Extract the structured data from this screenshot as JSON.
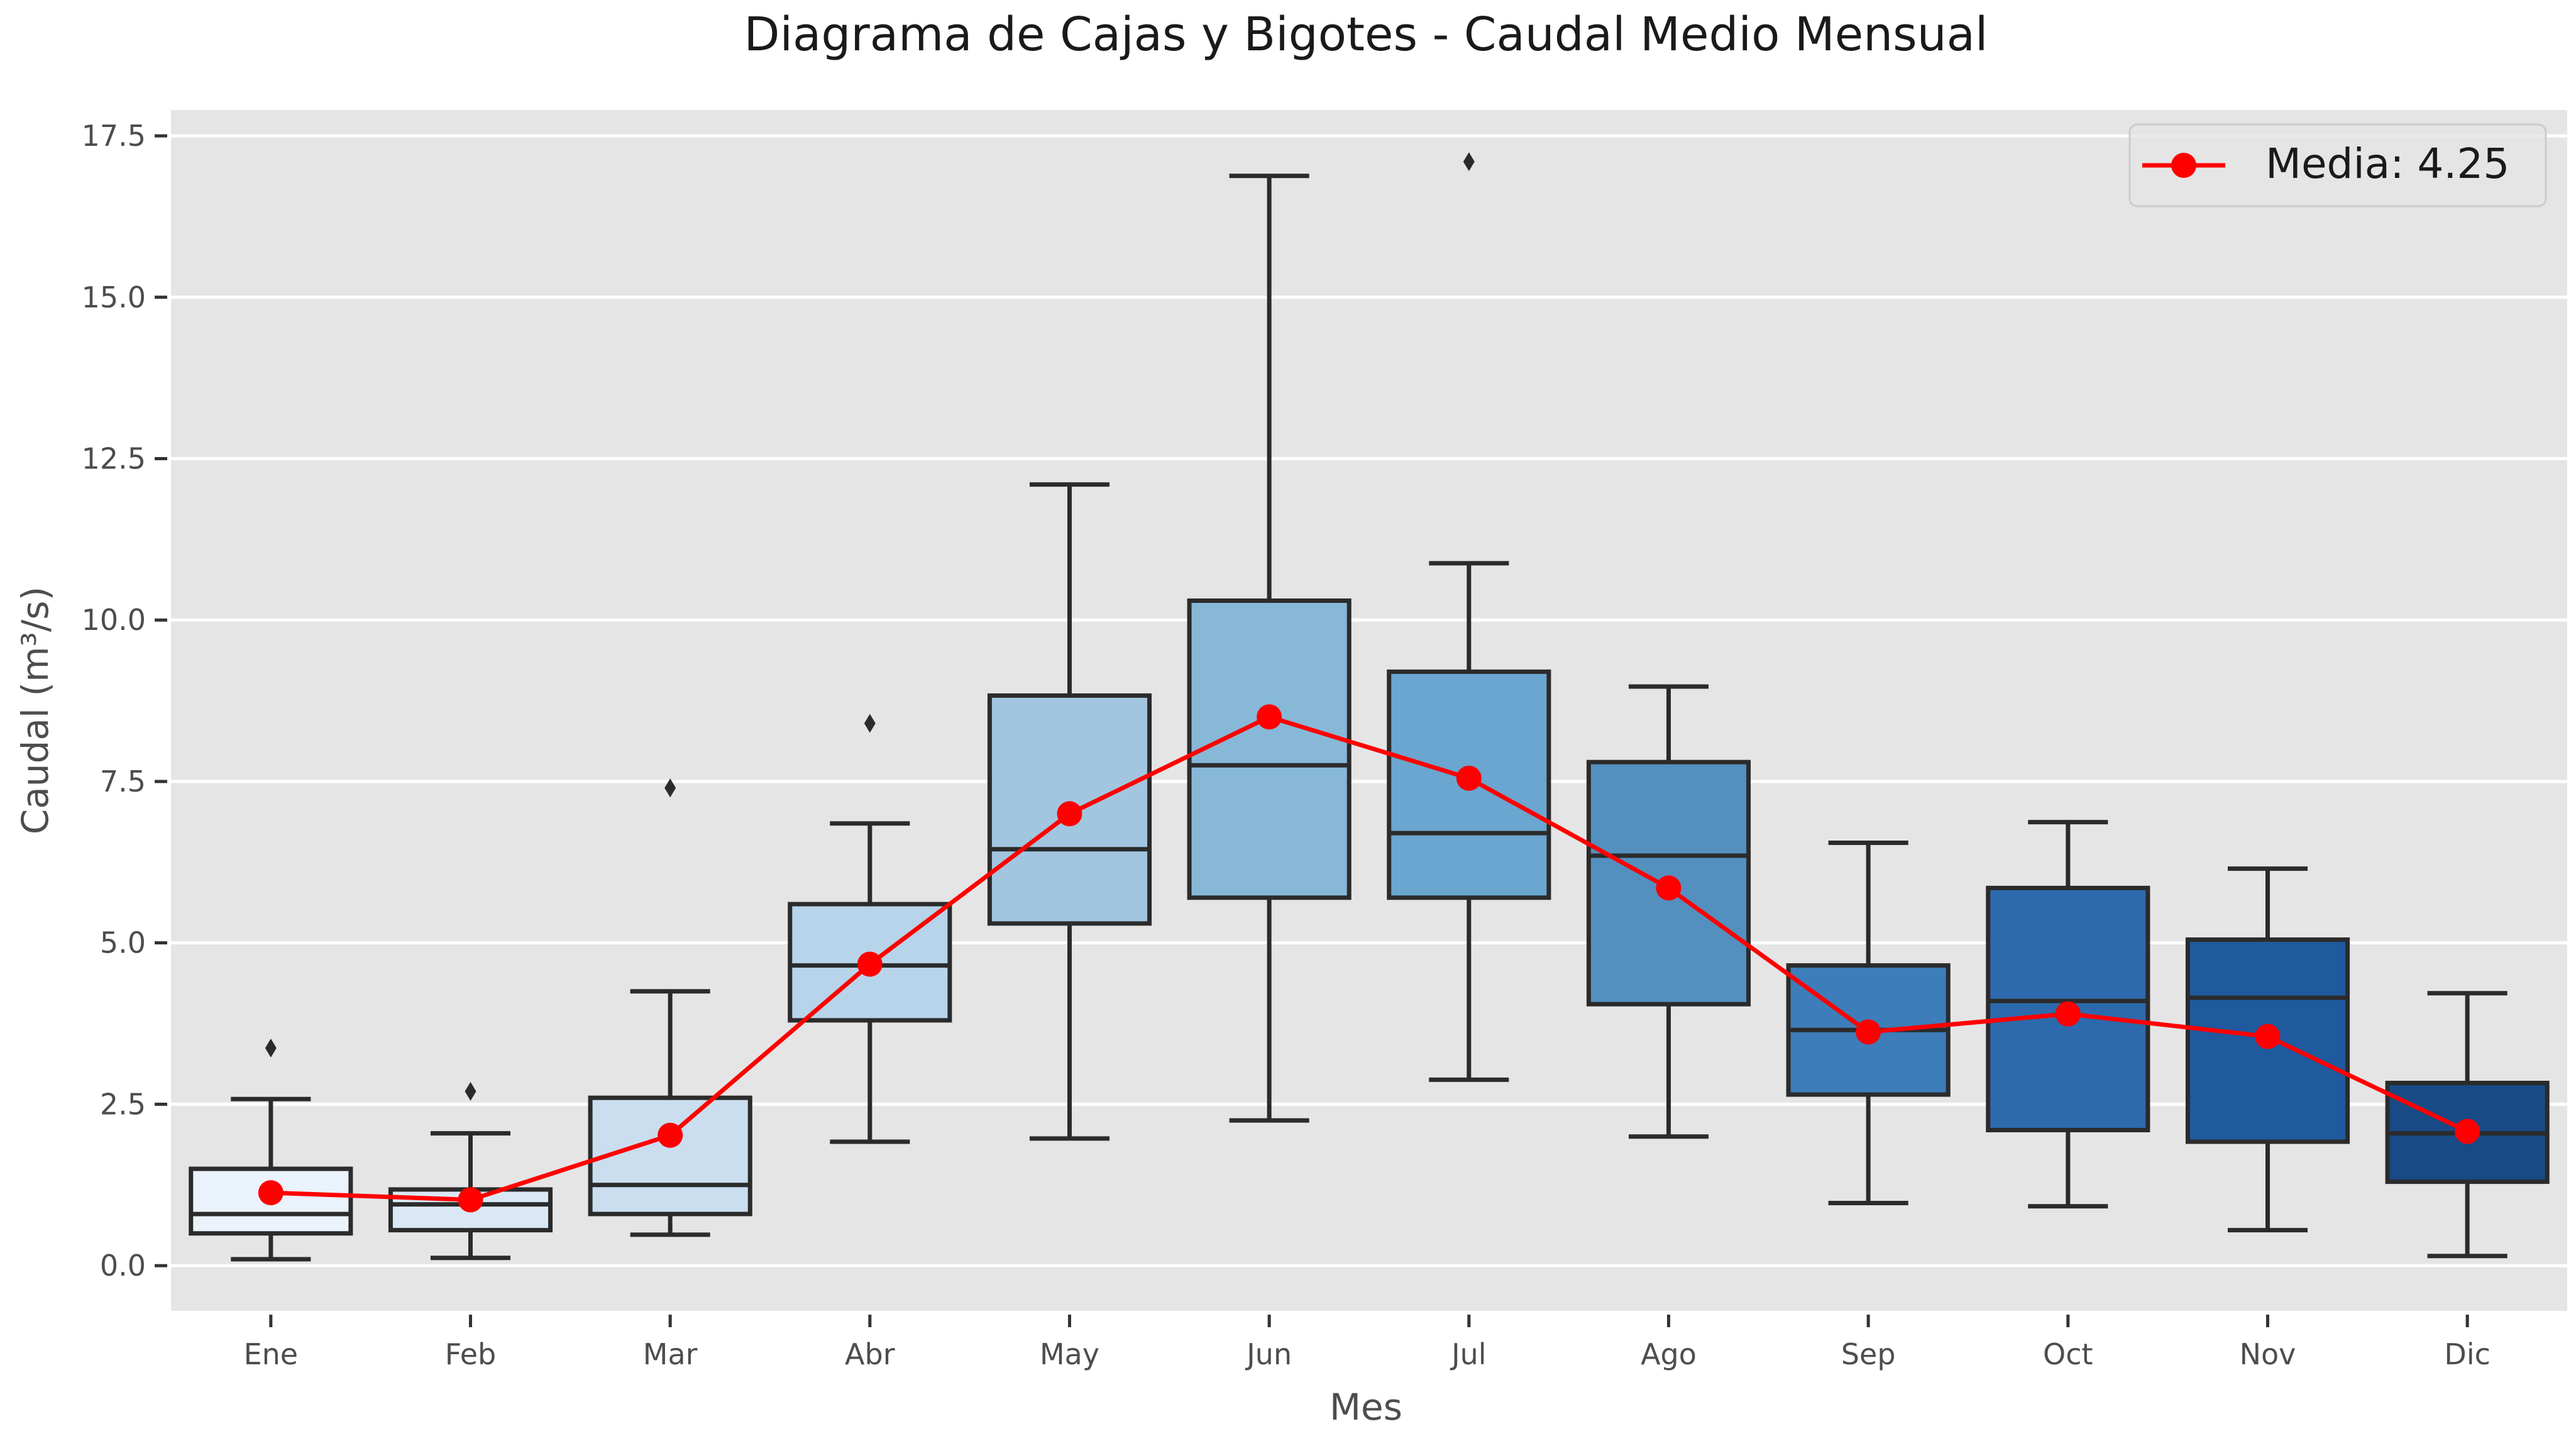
{
  "chart_data": {
    "type": "box",
    "title": "Diagrama de Cajas y Bigotes - Caudal Medio Mensual",
    "xlabel": "Mes",
    "ylabel": "Caudal (m³/s)",
    "ylim": [
      -0.7,
      17.9
    ],
    "yticks": [
      0.0,
      2.5,
      5.0,
      7.5,
      10.0,
      12.5,
      15.0,
      17.5
    ],
    "ytick_labels": [
      "0.0",
      "2.5",
      "5.0",
      "7.5",
      "10.0",
      "12.5",
      "15.0",
      "17.5"
    ],
    "grid": true,
    "legend_position": "top-right",
    "categories": [
      "Ene",
      "Feb",
      "Mar",
      "Abr",
      "May",
      "Jun",
      "Jul",
      "Ago",
      "Sep",
      "Oct",
      "Nov",
      "Dic"
    ],
    "boxes": [
      {
        "whislo": 0.1,
        "q1": 0.5,
        "med": 0.8,
        "q3": 1.5,
        "whishi": 2.58,
        "fliers": [
          3.37
        ]
      },
      {
        "whislo": 0.12,
        "q1": 0.55,
        "med": 0.95,
        "q3": 1.18,
        "whishi": 2.05,
        "fliers": [
          2.7
        ]
      },
      {
        "whislo": 0.48,
        "q1": 0.8,
        "med": 1.25,
        "q3": 2.6,
        "whishi": 4.25,
        "fliers": [
          7.4
        ]
      },
      {
        "whislo": 1.92,
        "q1": 3.8,
        "med": 4.65,
        "q3": 5.6,
        "whishi": 6.85,
        "fliers": [
          8.4
        ]
      },
      {
        "whislo": 1.97,
        "q1": 5.3,
        "med": 6.45,
        "q3": 8.83,
        "whishi": 12.1,
        "fliers": []
      },
      {
        "whislo": 2.25,
        "q1": 5.7,
        "med": 7.75,
        "q3": 10.3,
        "whishi": 16.88,
        "fliers": []
      },
      {
        "whislo": 2.88,
        "q1": 5.7,
        "med": 6.7,
        "q3": 9.2,
        "whishi": 10.88,
        "fliers": [
          17.1
        ]
      },
      {
        "whislo": 2.0,
        "q1": 4.05,
        "med": 6.35,
        "q3": 7.8,
        "whishi": 8.97,
        "fliers": []
      },
      {
        "whislo": 0.97,
        "q1": 2.65,
        "med": 3.65,
        "q3": 4.65,
        "whishi": 6.55,
        "fliers": []
      },
      {
        "whislo": 0.92,
        "q1": 2.1,
        "med": 4.1,
        "q3": 5.85,
        "whishi": 6.87,
        "fliers": []
      },
      {
        "whislo": 0.55,
        "q1": 1.92,
        "med": 4.15,
        "q3": 5.05,
        "whishi": 6.15,
        "fliers": []
      },
      {
        "whislo": 0.15,
        "q1": 1.3,
        "med": 2.05,
        "q3": 2.83,
        "whishi": 4.22,
        "fliers": []
      }
    ],
    "box_colors": [
      "#eaf2fb",
      "#dae8f5",
      "#cadef0",
      "#b7d4ea",
      "#a2c6e0",
      "#87b8d8",
      "#6aa6cf",
      "#5390c0",
      "#3d7db9",
      "#2d6aad",
      "#1f5a9e",
      "#184a85"
    ],
    "series": [
      {
        "name": "Media: 4.25",
        "type": "line",
        "color": "#ff0000",
        "values": [
          1.13,
          1.02,
          2.02,
          4.67,
          7.0,
          8.5,
          7.55,
          5.85,
          3.62,
          3.9,
          3.55,
          2.08
        ]
      }
    ]
  }
}
